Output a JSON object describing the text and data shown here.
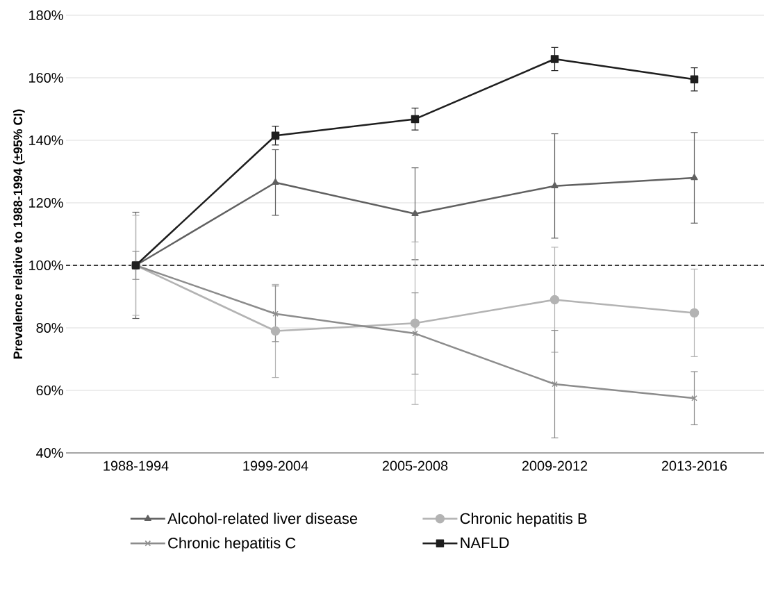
{
  "chart_data": {
    "type": "line",
    "ylabel": "Prevalence relative to 1988-1994 (±95% CI)",
    "categories": [
      "1988-1994",
      "1999-2004",
      "2005-2008",
      "2009-2012",
      "2013-2016"
    ],
    "series": [
      {
        "name": "Alcohol-related liver disease",
        "color": "#606060",
        "marker": "triangle",
        "values": [
          100,
          126.5,
          116.5,
          125.4,
          128
        ],
        "errors": [
          17,
          10.5,
          14.7,
          16.7,
          14.5
        ]
      },
      {
        "name": "Chronic hepatitis B",
        "color": "#b3b3b3",
        "marker": "circle",
        "values": [
          100,
          79,
          81.5,
          89,
          84.8
        ],
        "errors": [
          16,
          14.9,
          26,
          16.8,
          14
        ]
      },
      {
        "name": "Chronic hepatitis C",
        "color": "#8c8c8c",
        "marker": "cross",
        "values": [
          100,
          84.5,
          78.2,
          62,
          57.5
        ],
        "errors": [
          4.5,
          8.9,
          13,
          17.2,
          8.5
        ]
      },
      {
        "name": "NAFLD",
        "color": "#1e1e1e",
        "marker": "square",
        "values": [
          100,
          141.5,
          146.8,
          166,
          159.5
        ],
        "errors": [
          null,
          3,
          3.5,
          3.7,
          3.7
        ]
      }
    ],
    "ylim": [
      40,
      180
    ],
    "yticks": [
      {
        "value": 40,
        "label": "40%"
      },
      {
        "value": 60,
        "label": "60%"
      },
      {
        "value": 80,
        "label": "80%"
      },
      {
        "value": 100,
        "label": "100%"
      },
      {
        "value": 120,
        "label": "120%"
      },
      {
        "value": 140,
        "label": "140%"
      },
      {
        "value": 160,
        "label": "160%"
      },
      {
        "value": 180,
        "label": "180%"
      }
    ],
    "ref_lines": [
      {
        "axis": "y",
        "value": 100,
        "color": "#000000",
        "line_style": "dashed"
      }
    ],
    "grid": "y",
    "legend": "bottom"
  }
}
